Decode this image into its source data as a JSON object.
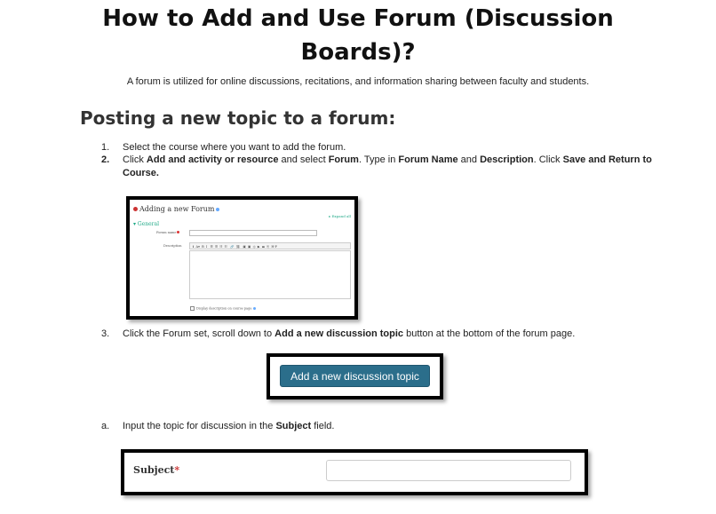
{
  "title_line1": "How to Add and Use Forum (Discussion",
  "title_line2": "Boards)?",
  "intro": "A forum is utilized for online discussions, recitations, and information sharing between faculty and students.",
  "section_heading": "Posting a new topic to a forum:",
  "steps": [
    {
      "num": "1.",
      "text": "Select the course where you want to add the forum."
    },
    {
      "num": "2.",
      "p1": "Click ",
      "b1": "Add and activity or resource",
      "p2": " and select ",
      "b2": "Forum",
      "p3": ". Type in ",
      "b3": "Forum Name",
      "p4": " and ",
      "b4": "Description",
      "p5": ". Click ",
      "b5": "Save and Return to",
      "b6": "Course."
    },
    {
      "num": "3.",
      "p1": "Click the Forum set, scroll down to ",
      "b1": "Add a new discussion topic",
      "p2": " button at the bottom of the forum page."
    },
    {
      "num": "a.",
      "p1": "Input the topic for discussion in the ",
      "b1": "Subject",
      "p2": " field."
    }
  ],
  "shot1": {
    "heading": "Adding a new Forum",
    "expand": "▸ Expand all",
    "general": "▾ General",
    "forum_name_label": "Forum name",
    "description_label": "Description",
    "toolbar": "ℹ  A▾  B  I   ☰  ☰  ☷  ☷   🔗  ⛓   ▣  ▣  ◎  ▶  ▬  ⎘  H-P",
    "display_description": "Display description on course page"
  },
  "shot2": {
    "button_label": "Add a new discussion topic",
    "button_color": "#2b6e8b"
  },
  "shot3": {
    "subject_label": "Subject",
    "required_mark": "*"
  }
}
